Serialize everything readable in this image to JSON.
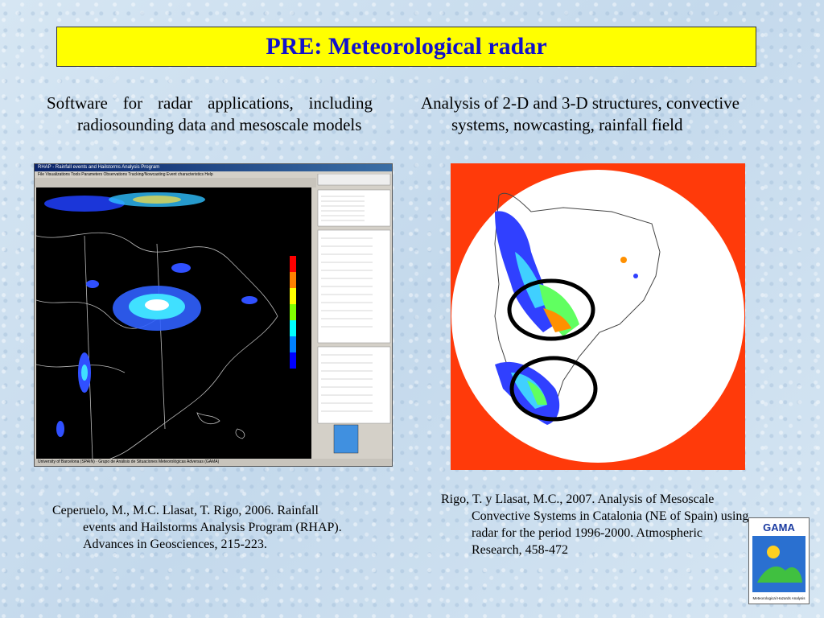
{
  "title": "PRE: Meteorological radar",
  "left_bullet": "Software for radar applications, including radiosounding data and mesoscale models",
  "right_bullet": "Analysis of 2-D and 3-D structures, convective systems, nowcasting, rainfall field",
  "ref_left": "Ceperuelo, M., M.C. Llasat, T. Rigo, 2006. Rainfall events and Hailstorms Analysis Program (RHAP). Advances in Geosciences, 215-223.",
  "ref_right": "Rigo, T. y Llasat, M.C., 2007. Analysis of Mesoscale Convective Systems in Catalonia (NE of Spain) using radar for the period 1996-2000. Atmospheric Research, 458-472",
  "software_window": {
    "title": "RHAP - Rainfall events and Hailstorms Analysis Program",
    "menu": "File  Visualizations  Tools  Parameters  Observations  Tracking/Nowcasting  Event characteristics  Help",
    "status": "University of Barcelona (SPAIN) · Grupo de Análisis de Situaciones Meteorológicas Adversas (GAMA)"
  },
  "logo": {
    "text": "GAMA",
    "caption": "Meteorological Hazards Analysis"
  },
  "colors": {
    "title_bg": "#ffff00",
    "title_text": "#1111cc",
    "radar_border": "#ff3a0a"
  }
}
